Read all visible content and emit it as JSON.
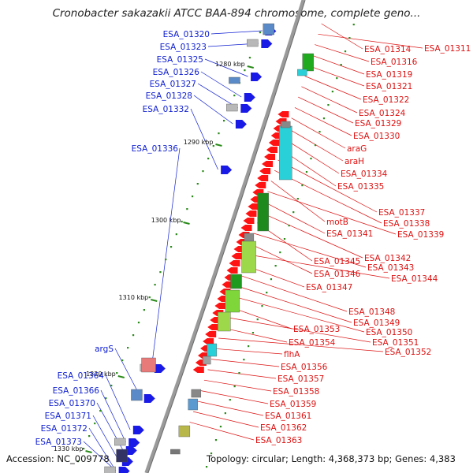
{
  "title": "Cronobacter sakazakii ATCC BAA-894 chromosome, complete geno...",
  "footer": {
    "accession": "Accession: NC_009778",
    "summary": "Topology: circular; Length: 4,368,373 bp; Genes: 4,383"
  },
  "colors": {
    "left_label": "#1020d0",
    "right_label": "#dd1111",
    "backbone": "#9a9a9a",
    "tick": "#2a8a1a"
  },
  "ticks": [
    "1280 kbp",
    "1290 kbp",
    "1300 kbp",
    "1310 kbp",
    "1320 kbp",
    "1330 kbp"
  ],
  "left_genes": [
    "ESA_01320",
    "ESA_01323",
    "ESA_01325",
    "ESA_01326",
    "ESA_01327",
    "ESA_01328",
    "ESA_01332",
    "ESA_01336",
    "argS",
    "ESA_01364",
    "ESA_01366",
    "ESA_01370",
    "ESA_01371",
    "ESA_01372",
    "ESA_01373"
  ],
  "right_genes": [
    "ESA_01314",
    "ESA_01311",
    "ESA_01316",
    "ESA_01319",
    "ESA_01321",
    "ESA_01322",
    "ESA_01324",
    "ESA_01329",
    "ESA_01330",
    "araG",
    "araH",
    "ESA_01334",
    "ESA_01335",
    "ESA_01337",
    "ESA_01338",
    "motB",
    "ESA_01339",
    "ESA_01341",
    "ESA_01342",
    "ESA_01345",
    "ESA_01343",
    "ESA_01346",
    "ESA_01344",
    "ESA_01347",
    "ESA_01348",
    "ESA_01349",
    "ESA_01350",
    "ESA_01353",
    "ESA_01351",
    "ESA_01354",
    "ESA_01352",
    "flhA",
    "ESA_01356",
    "ESA_01357",
    "ESA_01358",
    "ESA_01359",
    "ESA_01361",
    "ESA_01362",
    "ESA_01363"
  ]
}
